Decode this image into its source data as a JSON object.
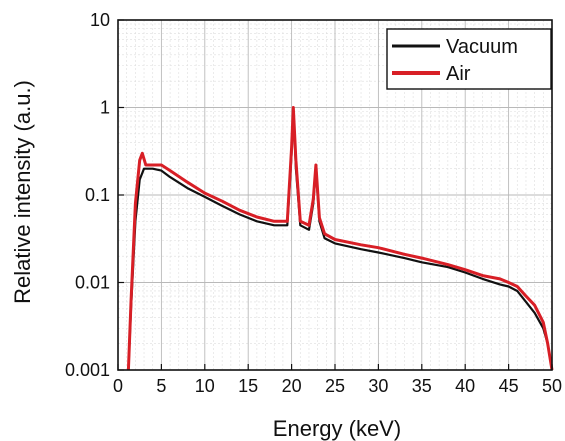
{
  "chart_data": {
    "type": "line",
    "xlabel": "Energy (keV)",
    "ylabel": "Relative intensity (a.u.)",
    "xlim": [
      0,
      50
    ],
    "ylim": [
      0.001,
      10
    ],
    "yscale": "log",
    "grid": true,
    "legend_position": "top-right",
    "x_ticks": [
      "0",
      "5",
      "10",
      "15",
      "20",
      "25",
      "30",
      "35",
      "40",
      "45",
      "50"
    ],
    "y_ticks": [
      "0.001",
      "0.01",
      "0.1",
      "1",
      "10"
    ],
    "series": [
      {
        "name": "Vacuum",
        "color": "#111111",
        "x": [
          1.2,
          1.5,
          2.0,
          2.5,
          3.0,
          4.0,
          5.0,
          6.0,
          8.0,
          10.0,
          12.0,
          14.0,
          16.0,
          18.0,
          19.5,
          20.0,
          20.2,
          20.5,
          21.0,
          22.0,
          22.5,
          22.8,
          23.2,
          23.8,
          25.0,
          28.0,
          30.0,
          33.0,
          35.0,
          38.0,
          40.0,
          42.0,
          44.0,
          45.0,
          46.0,
          47.0,
          48.0,
          49.0,
          49.5,
          50.0
        ],
        "y": [
          0.001,
          0.005,
          0.05,
          0.15,
          0.2,
          0.2,
          0.19,
          0.16,
          0.12,
          0.095,
          0.075,
          0.06,
          0.05,
          0.045,
          0.045,
          0.3,
          0.95,
          0.2,
          0.045,
          0.04,
          0.08,
          0.2,
          0.05,
          0.032,
          0.028,
          0.024,
          0.022,
          0.019,
          0.017,
          0.015,
          0.013,
          0.011,
          0.0095,
          0.009,
          0.008,
          0.006,
          0.0045,
          0.003,
          0.002,
          0.001
        ]
      },
      {
        "name": "Air",
        "color": "#d81f26",
        "x": [
          1.2,
          1.5,
          2.0,
          2.5,
          2.8,
          3.2,
          4.0,
          5.0,
          6.0,
          8.0,
          10.0,
          12.0,
          14.0,
          16.0,
          18.0,
          19.5,
          20.0,
          20.2,
          20.5,
          21.0,
          22.0,
          22.5,
          22.8,
          23.2,
          23.8,
          25.0,
          28.0,
          30.0,
          33.0,
          35.0,
          38.0,
          40.0,
          42.0,
          44.0,
          45.0,
          46.0,
          47.0,
          48.0,
          49.0,
          49.5,
          50.0
        ],
        "y": [
          0.001,
          0.006,
          0.08,
          0.25,
          0.3,
          0.22,
          0.22,
          0.22,
          0.19,
          0.14,
          0.105,
          0.085,
          0.067,
          0.056,
          0.05,
          0.05,
          0.35,
          1.0,
          0.25,
          0.05,
          0.045,
          0.09,
          0.22,
          0.055,
          0.036,
          0.031,
          0.027,
          0.025,
          0.021,
          0.019,
          0.016,
          0.014,
          0.012,
          0.011,
          0.01,
          0.009,
          0.007,
          0.0055,
          0.0035,
          0.002,
          0.001
        ]
      }
    ]
  }
}
